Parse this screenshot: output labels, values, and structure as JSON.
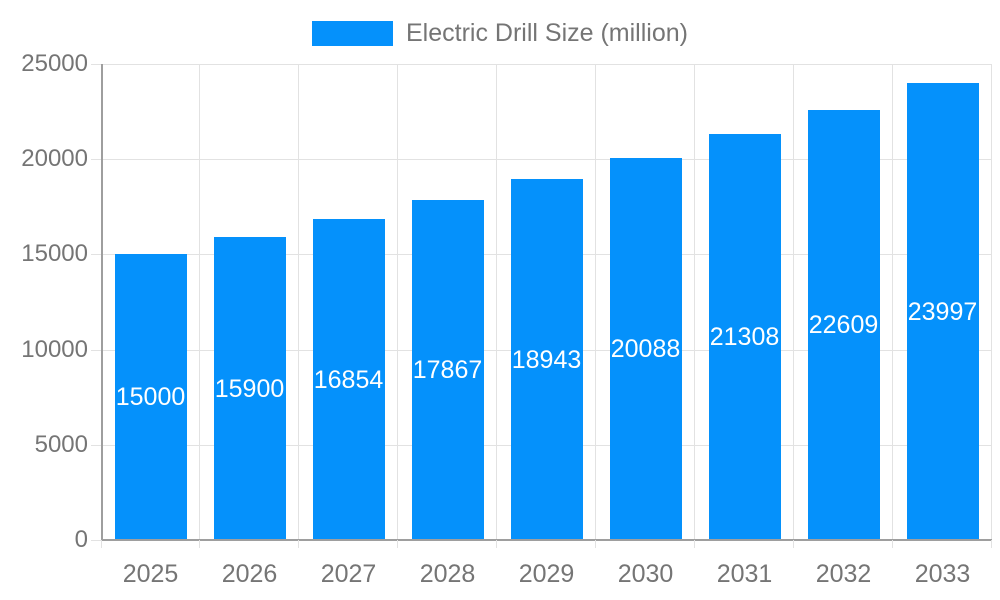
{
  "chart_data": {
    "type": "bar",
    "title": "Electric Drill Size (million)",
    "legend": {
      "label": "Electric Drill Size (million)",
      "position": "top"
    },
    "categories": [
      "2025",
      "2026",
      "2027",
      "2028",
      "2029",
      "2030",
      "2031",
      "2032",
      "2033"
    ],
    "values": [
      15000,
      15900,
      16854,
      17867,
      18943,
      20088,
      21308,
      22609,
      23997
    ],
    "xlabel": "",
    "ylabel": "",
    "ylim": [
      0,
      25000
    ],
    "y_ticks": [
      0,
      5000,
      10000,
      15000,
      20000,
      25000
    ],
    "grid": true,
    "bar_labels_visible": true,
    "colors": {
      "bar": "#0591fb",
      "bar_label_text": "#ffffff",
      "axis_text": "#757575",
      "legend_text": "#757575",
      "gridline": "#e2e2e2",
      "axis_line": "#9e9e9e",
      "background": "#ffffff"
    }
  }
}
